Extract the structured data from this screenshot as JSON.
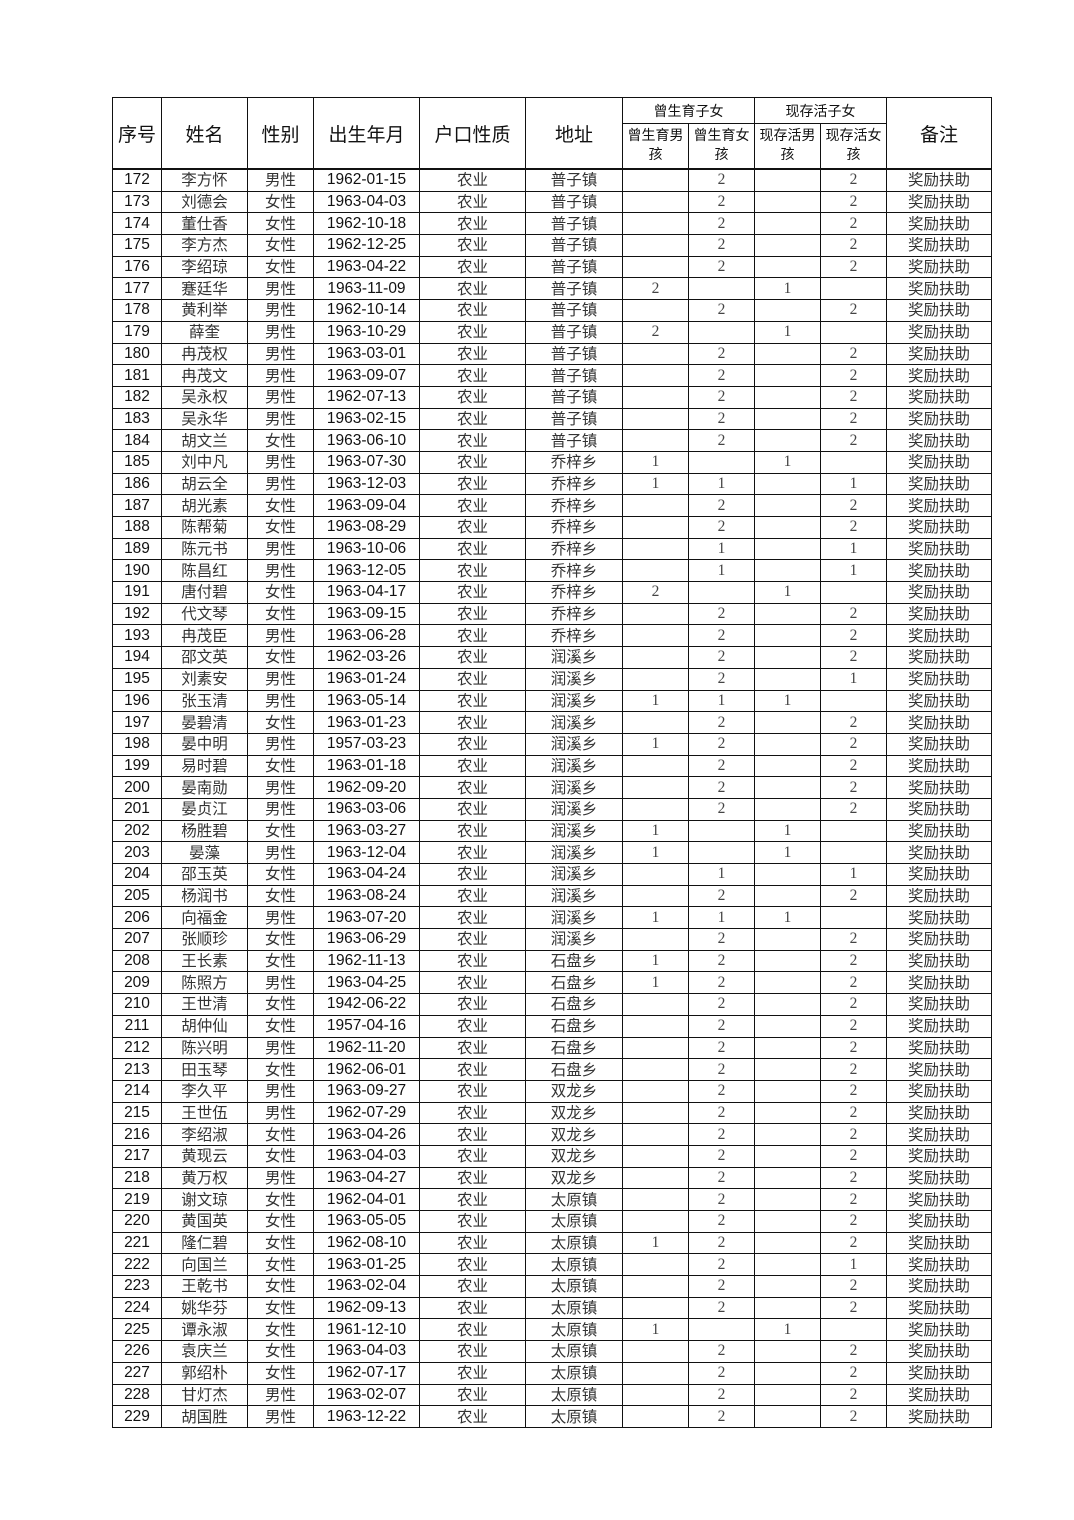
{
  "header": {
    "no": "序号",
    "name": "姓名",
    "gender": "性别",
    "dob": "出生年月",
    "hukou": "户口性质",
    "address": "地址",
    "born_group": "曾生育子女",
    "living_group": "现存活子女",
    "born_boys": "曾生育男孩",
    "born_girls": "曾生育女孩",
    "living_boys": "现存活男孩",
    "living_girls": "现存活女孩",
    "note": "备注"
  },
  "rows": [
    [
      "172",
      "李方怀",
      "男性",
      "1962-01-15",
      "农业",
      "普子镇",
      "",
      "2",
      "",
      "2",
      "奖励扶助"
    ],
    [
      "173",
      "刘德会",
      "女性",
      "1963-04-03",
      "农业",
      "普子镇",
      "",
      "2",
      "",
      "2",
      "奖励扶助"
    ],
    [
      "174",
      "董仕香",
      "女性",
      "1962-10-18",
      "农业",
      "普子镇",
      "",
      "2",
      "",
      "2",
      "奖励扶助"
    ],
    [
      "175",
      "李方杰",
      "女性",
      "1962-12-25",
      "农业",
      "普子镇",
      "",
      "2",
      "",
      "2",
      "奖励扶助"
    ],
    [
      "176",
      "李绍琼",
      "女性",
      "1963-04-22",
      "农业",
      "普子镇",
      "",
      "2",
      "",
      "2",
      "奖励扶助"
    ],
    [
      "177",
      "蹇廷华",
      "男性",
      "1963-11-09",
      "农业",
      "普子镇",
      "2",
      "",
      "1",
      "",
      "奖励扶助"
    ],
    [
      "178",
      "黄利举",
      "男性",
      "1962-10-14",
      "农业",
      "普子镇",
      "",
      "2",
      "",
      "2",
      "奖励扶助"
    ],
    [
      "179",
      "薛奎",
      "男性",
      "1963-10-29",
      "农业",
      "普子镇",
      "2",
      "",
      "1",
      "",
      "奖励扶助"
    ],
    [
      "180",
      "冉茂权",
      "男性",
      "1963-03-01",
      "农业",
      "普子镇",
      "",
      "2",
      "",
      "2",
      "奖励扶助"
    ],
    [
      "181",
      "冉茂文",
      "男性",
      "1963-09-07",
      "农业",
      "普子镇",
      "",
      "2",
      "",
      "2",
      "奖励扶助"
    ],
    [
      "182",
      "吴永权",
      "男性",
      "1962-07-13",
      "农业",
      "普子镇",
      "",
      "2",
      "",
      "2",
      "奖励扶助"
    ],
    [
      "183",
      "吴永华",
      "男性",
      "1963-02-15",
      "农业",
      "普子镇",
      "",
      "2",
      "",
      "2",
      "奖励扶助"
    ],
    [
      "184",
      "胡文兰",
      "女性",
      "1963-06-10",
      "农业",
      "普子镇",
      "",
      "2",
      "",
      "2",
      "奖励扶助"
    ],
    [
      "185",
      "刘中凡",
      "男性",
      "1963-07-30",
      "农业",
      "乔梓乡",
      "1",
      "",
      "1",
      "",
      "奖励扶助"
    ],
    [
      "186",
      "胡云全",
      "男性",
      "1963-12-03",
      "农业",
      "乔梓乡",
      "1",
      "1",
      "",
      "1",
      "奖励扶助"
    ],
    [
      "187",
      "胡光素",
      "女性",
      "1963-09-04",
      "农业",
      "乔梓乡",
      "",
      "2",
      "",
      "2",
      "奖励扶助"
    ],
    [
      "188",
      "陈帮菊",
      "女性",
      "1963-08-29",
      "农业",
      "乔梓乡",
      "",
      "2",
      "",
      "2",
      "奖励扶助"
    ],
    [
      "189",
      "陈元书",
      "男性",
      "1963-10-06",
      "农业",
      "乔梓乡",
      "",
      "1",
      "",
      "1",
      "奖励扶助"
    ],
    [
      "190",
      "陈昌红",
      "男性",
      "1963-12-05",
      "农业",
      "乔梓乡",
      "",
      "1",
      "",
      "1",
      "奖励扶助"
    ],
    [
      "191",
      "唐付碧",
      "女性",
      "1963-04-17",
      "农业",
      "乔梓乡",
      "2",
      "",
      "1",
      "",
      "奖励扶助"
    ],
    [
      "192",
      "代文琴",
      "女性",
      "1963-09-15",
      "农业",
      "乔梓乡",
      "",
      "2",
      "",
      "2",
      "奖励扶助"
    ],
    [
      "193",
      "冉茂臣",
      "男性",
      "1963-06-28",
      "农业",
      "乔梓乡",
      "",
      "2",
      "",
      "2",
      "奖励扶助"
    ],
    [
      "194",
      "邵文英",
      "女性",
      "1962-03-26",
      "农业",
      "润溪乡",
      "",
      "2",
      "",
      "2",
      "奖励扶助"
    ],
    [
      "195",
      "刘素安",
      "男性",
      "1963-01-24",
      "农业",
      "润溪乡",
      "",
      "2",
      "",
      "1",
      "奖励扶助"
    ],
    [
      "196",
      "张玉清",
      "男性",
      "1963-05-14",
      "农业",
      "润溪乡",
      "1",
      "1",
      "1",
      "",
      "奖励扶助"
    ],
    [
      "197",
      "晏碧清",
      "女性",
      "1963-01-23",
      "农业",
      "润溪乡",
      "",
      "2",
      "",
      "2",
      "奖励扶助"
    ],
    [
      "198",
      "晏中明",
      "男性",
      "1957-03-23",
      "农业",
      "润溪乡",
      "1",
      "2",
      "",
      "2",
      "奖励扶助"
    ],
    [
      "199",
      "易时碧",
      "女性",
      "1963-01-18",
      "农业",
      "润溪乡",
      "",
      "2",
      "",
      "2",
      "奖励扶助"
    ],
    [
      "200",
      "晏南勋",
      "男性",
      "1962-09-20",
      "农业",
      "润溪乡",
      "",
      "2",
      "",
      "2",
      "奖励扶助"
    ],
    [
      "201",
      "晏贞江",
      "男性",
      "1963-03-06",
      "农业",
      "润溪乡",
      "",
      "2",
      "",
      "2",
      "奖励扶助"
    ],
    [
      "202",
      "杨胜碧",
      "女性",
      "1963-03-27",
      "农业",
      "润溪乡",
      "1",
      "",
      "1",
      "",
      "奖励扶助"
    ],
    [
      "203",
      "晏藻",
      "男性",
      "1963-12-04",
      "农业",
      "润溪乡",
      "1",
      "",
      "1",
      "",
      "奖励扶助"
    ],
    [
      "204",
      "邵玉英",
      "女性",
      "1963-04-24",
      "农业",
      "润溪乡",
      "",
      "1",
      "",
      "1",
      "奖励扶助"
    ],
    [
      "205",
      "杨润书",
      "女性",
      "1963-08-24",
      "农业",
      "润溪乡",
      "",
      "2",
      "",
      "2",
      "奖励扶助"
    ],
    [
      "206",
      "向福金",
      "男性",
      "1963-07-20",
      "农业",
      "润溪乡",
      "1",
      "1",
      "1",
      "",
      "奖励扶助"
    ],
    [
      "207",
      "张顺珍",
      "女性",
      "1963-06-29",
      "农业",
      "润溪乡",
      "",
      "2",
      "",
      "2",
      "奖励扶助"
    ],
    [
      "208",
      "王长素",
      "女性",
      "1962-11-13",
      "农业",
      "石盘乡",
      "1",
      "2",
      "",
      "2",
      "奖励扶助"
    ],
    [
      "209",
      "陈照方",
      "男性",
      "1963-04-25",
      "农业",
      "石盘乡",
      "1",
      "2",
      "",
      "2",
      "奖励扶助"
    ],
    [
      "210",
      "王世清",
      "女性",
      "1942-06-22",
      "农业",
      "石盘乡",
      "",
      "2",
      "",
      "2",
      "奖励扶助"
    ],
    [
      "211",
      "胡仲仙",
      "女性",
      "1957-04-16",
      "农业",
      "石盘乡",
      "",
      "2",
      "",
      "2",
      "奖励扶助"
    ],
    [
      "212",
      "陈兴明",
      "男性",
      "1962-11-20",
      "农业",
      "石盘乡",
      "",
      "2",
      "",
      "2",
      "奖励扶助"
    ],
    [
      "213",
      "田玉琴",
      "女性",
      "1962-06-01",
      "农业",
      "石盘乡",
      "",
      "2",
      "",
      "2",
      "奖励扶助"
    ],
    [
      "214",
      "李久平",
      "男性",
      "1963-09-27",
      "农业",
      "双龙乡",
      "",
      "2",
      "",
      "2",
      "奖励扶助"
    ],
    [
      "215",
      "王世伍",
      "男性",
      "1962-07-29",
      "农业",
      "双龙乡",
      "",
      "2",
      "",
      "2",
      "奖励扶助"
    ],
    [
      "216",
      "李绍淑",
      "女性",
      "1963-04-26",
      "农业",
      "双龙乡",
      "",
      "2",
      "",
      "2",
      "奖励扶助"
    ],
    [
      "217",
      "黄现云",
      "女性",
      "1963-04-03",
      "农业",
      "双龙乡",
      "",
      "2",
      "",
      "2",
      "奖励扶助"
    ],
    [
      "218",
      "黄万权",
      "男性",
      "1963-04-27",
      "农业",
      "双龙乡",
      "",
      "2",
      "",
      "2",
      "奖励扶助"
    ],
    [
      "219",
      "谢文琼",
      "女性",
      "1962-04-01",
      "农业",
      "太原镇",
      "",
      "2",
      "",
      "2",
      "奖励扶助"
    ],
    [
      "220",
      "黄国英",
      "女性",
      "1963-05-05",
      "农业",
      "太原镇",
      "",
      "2",
      "",
      "2",
      "奖励扶助"
    ],
    [
      "221",
      "隆仁碧",
      "女性",
      "1962-08-10",
      "农业",
      "太原镇",
      "1",
      "2",
      "",
      "2",
      "奖励扶助"
    ],
    [
      "222",
      "向国兰",
      "女性",
      "1963-01-25",
      "农业",
      "太原镇",
      "",
      "2",
      "",
      "1",
      "奖励扶助"
    ],
    [
      "223",
      "王乾书",
      "女性",
      "1963-02-04",
      "农业",
      "太原镇",
      "",
      "2",
      "",
      "2",
      "奖励扶助"
    ],
    [
      "224",
      "姚华芬",
      "女性",
      "1962-09-13",
      "农业",
      "太原镇",
      "",
      "2",
      "",
      "2",
      "奖励扶助"
    ],
    [
      "225",
      "谭永淑",
      "女性",
      "1961-12-10",
      "农业",
      "太原镇",
      "1",
      "",
      "1",
      "",
      "奖励扶助"
    ],
    [
      "226",
      "袁庆兰",
      "女性",
      "1963-04-03",
      "农业",
      "太原镇",
      "",
      "2",
      "",
      "2",
      "奖励扶助"
    ],
    [
      "227",
      "郭绍朴",
      "女性",
      "1962-07-17",
      "农业",
      "太原镇",
      "",
      "2",
      "",
      "2",
      "奖励扶助"
    ],
    [
      "228",
      "甘灯杰",
      "男性",
      "1963-02-07",
      "农业",
      "太原镇",
      "",
      "2",
      "",
      "2",
      "奖励扶助"
    ],
    [
      "229",
      "胡国胜",
      "男性",
      "1963-12-22",
      "农业",
      "太原镇",
      "",
      "2",
      "",
      "2",
      "奖励扶助"
    ]
  ]
}
